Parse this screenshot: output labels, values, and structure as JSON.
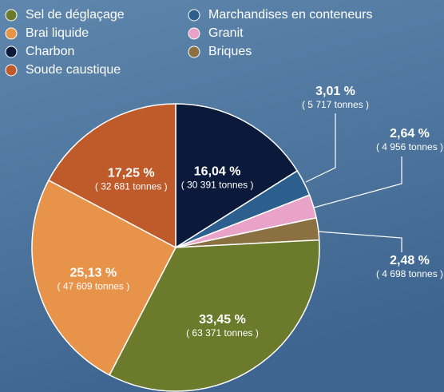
{
  "chart_data": {
    "type": "pie",
    "categories": [
      "Sel de déglaçage",
      "Brai liquide",
      "Charbon",
      "Soude caustique",
      "Marchandises en conteneurs",
      "Granit",
      "Briques"
    ],
    "values": [
      33.45,
      25.13,
      16.04,
      17.25,
      3.01,
      2.64,
      2.48
    ],
    "value_labels": [
      "33,45 %",
      "25,13 %",
      "16,04 %",
      "17,25 %",
      "3,01 %",
      "2,64 %",
      "2,48 %"
    ],
    "tonnes": [
      63371,
      47609,
      30391,
      32681,
      5717,
      4956,
      4698
    ],
    "tonnes_labels": [
      "( 63 371 tonnes )",
      "( 47 609 tonnes )",
      "( 30 391 tonnes )",
      "( 32 681 tonnes )",
      "( 5 717 tonnes )",
      "( 4 956 tonnes )",
      "( 4 698 tonnes )"
    ],
    "colors": [
      "#6b7a2b",
      "#e7944a",
      "#0b1a3a",
      "#bf5a2b",
      "#2d5f8e",
      "#e9a3c9",
      "#8b7142"
    ]
  }
}
